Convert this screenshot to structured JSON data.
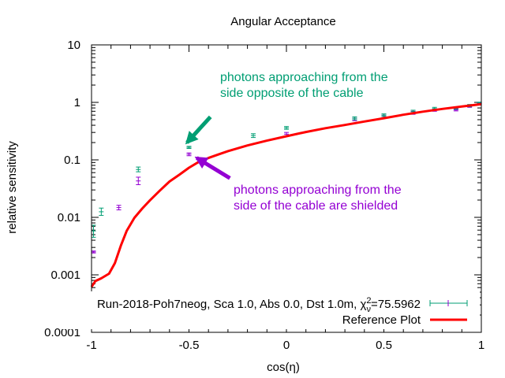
{
  "chart_data": {
    "type": "scatter",
    "title": "Angular Acceptance",
    "xlabel": "cos(η)",
    "ylabel": "relative sensitivity",
    "xlim": [
      -1,
      1
    ],
    "ylim": [
      0.0001,
      10
    ],
    "yscale": "log",
    "grid": false,
    "legend_position": "bottom-right",
    "x_ticks": [
      {
        "v": -1,
        "label": "-1"
      },
      {
        "v": -0.5,
        "label": "-0.5"
      },
      {
        "v": 0,
        "label": "0"
      },
      {
        "v": 0.5,
        "label": "0.5"
      },
      {
        "v": 1,
        "label": "1"
      }
    ],
    "y_ticks": [
      {
        "v": 0.0001,
        "label": "0.0001"
      },
      {
        "v": 0.001,
        "label": "0.001"
      },
      {
        "v": 0.01,
        "label": "0.01"
      },
      {
        "v": 0.1,
        "label": "0.1"
      },
      {
        "v": 1,
        "label": "1"
      },
      {
        "v": 10,
        "label": "10"
      }
    ],
    "legend": [
      {
        "label_main": "Run-2018-Poh7neog, Sca 1.0, Abs 0.0, Dst 1.0m, χ",
        "label_sup": "2",
        "label_sub": "ν",
        "label_tail": "=75.5962"
      },
      {
        "label_main": "Reference Plot",
        "label_sup": "",
        "label_sub": "",
        "label_tail": ""
      }
    ],
    "series": [
      {
        "color": "#9400d3",
        "style": "errorbars",
        "points": [
          {
            "x": -0.99,
            "y": 0.0025,
            "lo": 0.0024,
            "hi": 0.0026
          },
          {
            "x": -0.86,
            "y": 0.0148,
            "lo": 0.0135,
            "hi": 0.0162
          },
          {
            "x": -0.76,
            "y": 0.043,
            "lo": 0.037,
            "hi": 0.05
          },
          {
            "x": -0.5,
            "y": 0.125,
            "lo": 0.118,
            "hi": 0.132
          },
          {
            "x": 0.0,
            "y": 0.28,
            "lo": 0.26,
            "hi": 0.3
          },
          {
            "x": 0.35,
            "y": 0.5,
            "lo": 0.48,
            "hi": 0.53
          },
          {
            "x": 0.5,
            "y": 0.57,
            "lo": 0.54,
            "hi": 0.6
          },
          {
            "x": 0.65,
            "y": 0.66,
            "lo": 0.62,
            "hi": 0.7
          },
          {
            "x": 0.76,
            "y": 0.73,
            "lo": 0.7,
            "hi": 0.77
          },
          {
            "x": 0.87,
            "y": 0.74,
            "lo": 0.71,
            "hi": 0.78
          },
          {
            "x": 0.94,
            "y": 0.86,
            "lo": 0.82,
            "hi": 0.9
          },
          {
            "x": 0.99,
            "y": 0.95,
            "lo": 0.91,
            "hi": 0.99
          }
        ]
      },
      {
        "color": "#009e73",
        "style": "errorbars",
        "points": [
          {
            "x": -0.99,
            "y": 0.0058,
            "lo": 0.0045,
            "hi": 0.0073
          },
          {
            "x": -0.95,
            "y": 0.0125,
            "lo": 0.0108,
            "hi": 0.0145
          },
          {
            "x": -0.76,
            "y": 0.068,
            "lo": 0.062,
            "hi": 0.075
          },
          {
            "x": -0.5,
            "y": 0.165,
            "lo": 0.158,
            "hi": 0.172
          },
          {
            "x": -0.17,
            "y": 0.265,
            "lo": 0.245,
            "hi": 0.285
          },
          {
            "x": 0.0,
            "y": 0.36,
            "lo": 0.34,
            "hi": 0.38
          },
          {
            "x": 0.35,
            "y": 0.53,
            "lo": 0.5,
            "hi": 0.56
          },
          {
            "x": 0.5,
            "y": 0.6,
            "lo": 0.57,
            "hi": 0.63
          },
          {
            "x": 0.65,
            "y": 0.69,
            "lo": 0.65,
            "hi": 0.73
          },
          {
            "x": 0.76,
            "y": 0.78,
            "lo": 0.74,
            "hi": 0.82
          },
          {
            "x": 0.87,
            "y": 0.8,
            "lo": 0.76,
            "hi": 0.84
          },
          {
            "x": 0.94,
            "y": 0.88,
            "lo": 0.84,
            "hi": 0.92
          },
          {
            "x": 0.99,
            "y": 0.97,
            "lo": 0.93,
            "hi": 1.01
          }
        ]
      },
      {
        "color": "#ff0000",
        "style": "line",
        "points": [
          {
            "x": -1.0,
            "y": 0.00062
          },
          {
            "x": -0.98,
            "y": 0.00078
          },
          {
            "x": -0.95,
            "y": 0.00087
          },
          {
            "x": -0.91,
            "y": 0.00105
          },
          {
            "x": -0.88,
            "y": 0.0016
          },
          {
            "x": -0.85,
            "y": 0.0032
          },
          {
            "x": -0.82,
            "y": 0.0058
          },
          {
            "x": -0.78,
            "y": 0.0098
          },
          {
            "x": -0.74,
            "y": 0.0142
          },
          {
            "x": -0.7,
            "y": 0.0198
          },
          {
            "x": -0.65,
            "y": 0.029
          },
          {
            "x": -0.6,
            "y": 0.042
          },
          {
            "x": -0.55,
            "y": 0.055
          },
          {
            "x": -0.5,
            "y": 0.073
          },
          {
            "x": -0.45,
            "y": 0.092
          },
          {
            "x": -0.4,
            "y": 0.108
          },
          {
            "x": -0.35,
            "y": 0.124
          },
          {
            "x": -0.3,
            "y": 0.142
          },
          {
            "x": -0.2,
            "y": 0.178
          },
          {
            "x": -0.1,
            "y": 0.216
          },
          {
            "x": 0.0,
            "y": 0.258
          },
          {
            "x": 0.1,
            "y": 0.305
          },
          {
            "x": 0.2,
            "y": 0.355
          },
          {
            "x": 0.3,
            "y": 0.405
          },
          {
            "x": 0.4,
            "y": 0.465
          },
          {
            "x": 0.5,
            "y": 0.53
          },
          {
            "x": 0.6,
            "y": 0.61
          },
          {
            "x": 0.7,
            "y": 0.69
          },
          {
            "x": 0.8,
            "y": 0.77
          },
          {
            "x": 0.9,
            "y": 0.85
          },
          {
            "x": 1.0,
            "y": 0.93
          }
        ]
      }
    ],
    "annotations": [
      {
        "lines": [
          "photons approaching from the",
          "side opposite of the cable"
        ],
        "color": "#009e73",
        "arrow_from": {
          "x": -0.39,
          "y": 0.56
        },
        "arrow_to": {
          "x": -0.51,
          "y": 0.2
        }
      },
      {
        "lines": [
          "photons approaching from the",
          "side of the cable are shielded"
        ],
        "color": "#9400d3",
        "arrow_from": {
          "x": -0.29,
          "y": 0.048
        },
        "arrow_to": {
          "x": -0.46,
          "y": 0.108
        }
      }
    ]
  }
}
